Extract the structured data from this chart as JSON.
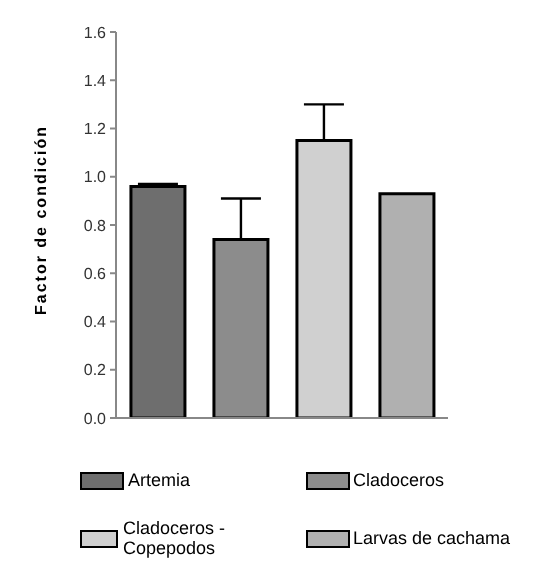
{
  "chart_data": {
    "type": "bar",
    "ylabel": "Factor de condición",
    "categories": [
      null,
      null,
      null,
      null
    ],
    "series": [
      {
        "name": "Artemia",
        "color": "#6e6e6e",
        "values": [
          0.96,
          null,
          null,
          null
        ],
        "errors": [
          [
            0.96,
            0.97
          ],
          null,
          null,
          null
        ]
      },
      {
        "name": "Cladoceros",
        "color": "#8c8c8c",
        "values": [
          null,
          0.74,
          null,
          null
        ],
        "errors": [
          null,
          [
            0.74,
            0.91
          ],
          null,
          null
        ]
      },
      {
        "name": "Cladoceros - Copepodos",
        "color": "#d0d0d0",
        "values": [
          null,
          null,
          1.15,
          null
        ],
        "errors": [
          null,
          null,
          [
            1.15,
            1.3
          ],
          null
        ]
      },
      {
        "name": "Larvas de cachama",
        "color": "#b0b0b0",
        "values": [
          null,
          null,
          null,
          0.93
        ]
      }
    ],
    "ylim": [
      0,
      1.6
    ],
    "yticks": [
      {
        "value": 0,
        "label": "0.0"
      },
      0.2,
      0.4,
      0.6,
      0.8,
      {
        "value": 1,
        "label": "1.0"
      },
      1.2,
      1.4,
      1.6
    ],
    "grid": false,
    "legend": "bottom"
  }
}
